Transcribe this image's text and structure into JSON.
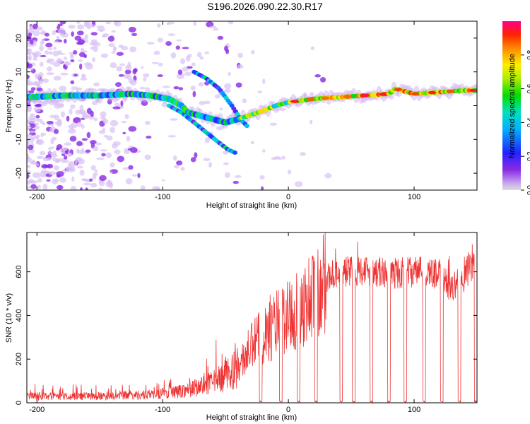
{
  "title": "S196.2026.090.22.30.R17",
  "colors": {
    "line": "#ee3333",
    "frame": "#000000",
    "spec_dark": "#7a1ad6",
    "spec_light": "#d8b8f4"
  },
  "chart_data": [
    {
      "type": "heatmap",
      "xlabel": "Height of straight line (km)",
      "ylabel": "Frequency (Hz)",
      "xlim": [
        -208,
        150
      ],
      "ylim": [
        -25,
        25
      ],
      "xticks": [
        -200,
        -100,
        0,
        100
      ],
      "yticks": [
        20,
        10,
        0,
        -10,
        -20
      ],
      "colorbar": {
        "label": "Normalized spectral amplitude",
        "range": [
          0,
          1
        ],
        "ticks": [
          "0.0",
          "0.2",
          "0.4",
          "0.6",
          "0.8"
        ],
        "tick_values": [
          0.0,
          0.2,
          0.4,
          0.6,
          0.8
        ]
      },
      "ridge": {
        "x": [
          -205,
          -180,
          -150,
          -125,
          -110,
          -95,
          -85,
          -80,
          -70,
          -60,
          -50,
          -40,
          -32,
          -28,
          -20,
          -10,
          0,
          20,
          40,
          60,
          80,
          85,
          100,
          120,
          140,
          150
        ],
        "freq": [
          2.5,
          3.0,
          3.0,
          3.5,
          3.0,
          2.0,
          0.0,
          -2.0,
          -3.0,
          -4.0,
          -5.0,
          -4.0,
          -3.0,
          -2.5,
          -1.5,
          0.0,
          1.0,
          2.0,
          2.5,
          3.0,
          3.5,
          5.0,
          3.5,
          4.0,
          4.5,
          4.5
        ]
      },
      "branch_upper": {
        "x": [
          -75,
          -65,
          -55,
          -45,
          -38,
          -33
        ],
        "freq": [
          10,
          8,
          5,
          0,
          -4,
          -6
        ]
      },
      "branch_lower": {
        "x": [
          -95,
          -85,
          -75,
          -65,
          -55,
          -48,
          -42
        ],
        "freq": [
          0,
          -2,
          -5,
          -8,
          -11,
          -13,
          -14
        ]
      }
    },
    {
      "type": "line",
      "xlabel": "Height of straight line (km)",
      "ylabel": "SNR (10 * v/v)",
      "xlim": [
        -208,
        150
      ],
      "ylim": [
        0,
        780
      ],
      "xticks": [
        -200,
        -100,
        0,
        100
      ],
      "yticks": [
        0,
        200,
        400,
        600
      ],
      "trend": {
        "x": [
          -208,
          -150,
          -100,
          -80,
          -60,
          -40,
          -30,
          -20,
          -10,
          0,
          10,
          20,
          30,
          40,
          60,
          80,
          100,
          120,
          130,
          140,
          150
        ],
        "snr": [
          30,
          30,
          40,
          60,
          90,
          160,
          250,
          320,
          360,
          400,
          440,
          500,
          570,
          600,
          610,
          590,
          600,
          590,
          520,
          600,
          620
        ]
      },
      "dropouts": [
        -22,
        -6,
        8,
        22,
        42,
        52,
        66,
        80,
        93,
        108,
        122,
        136,
        149
      ]
    }
  ]
}
